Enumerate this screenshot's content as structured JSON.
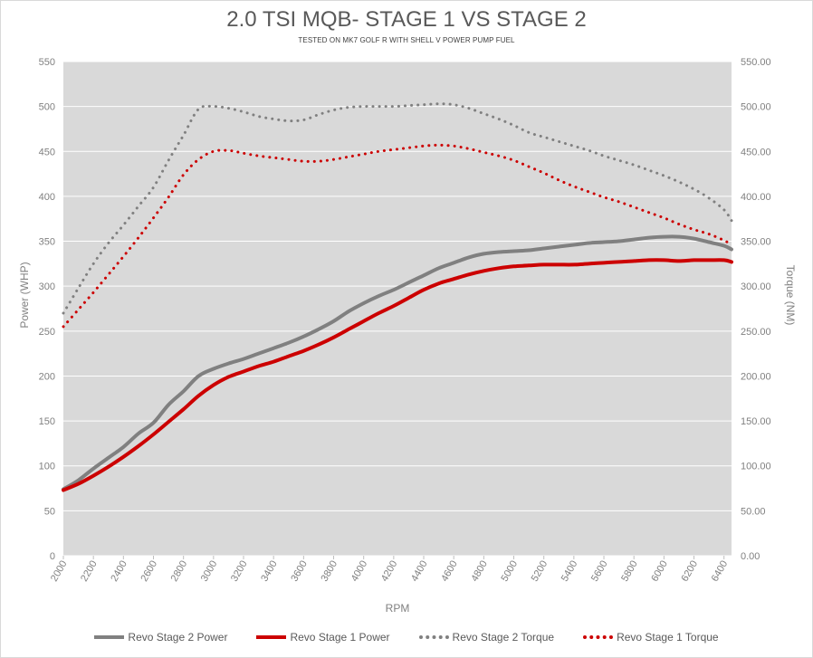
{
  "chart_data": {
    "type": "line",
    "title": "2.0 TSI MQB- STAGE 1 VS STAGE 2",
    "subtitle": "TESTED ON MK7 GOLF R WITH SHELL V POWER PUMP FUEL",
    "xlabel": "RPM",
    "ylabel": "Power (WHP)",
    "y2label": "Torque (NM)",
    "ylim": [
      0,
      550
    ],
    "y2lim": [
      0,
      550
    ],
    "xlim": [
      2000,
      6450
    ],
    "x_ticks": [
      2000,
      2200,
      2400,
      2600,
      2800,
      3000,
      3200,
      3400,
      3600,
      3800,
      4000,
      4200,
      4400,
      4600,
      4800,
      5000,
      5200,
      5400,
      5600,
      5800,
      6000,
      6200,
      6400
    ],
    "y_ticks": [
      "0",
      "50",
      "100",
      "150",
      "200",
      "250",
      "300",
      "350",
      "400",
      "450",
      "500",
      "550"
    ],
    "y2_ticks": [
      "0.00",
      "50.00",
      "100.00",
      "150.00",
      "200.00",
      "250.00",
      "300.00",
      "350.00",
      "400.00",
      "450.00",
      "500.00",
      "550.00"
    ],
    "grid": true,
    "legend_position": "bottom",
    "series": [
      {
        "name": "Revo Stage 2 Power",
        "axis": "left",
        "style": "solid",
        "color": "#808080",
        "points": [
          [
            2000,
            74
          ],
          [
            2100,
            84
          ],
          [
            2200,
            97
          ],
          [
            2300,
            109
          ],
          [
            2400,
            121
          ],
          [
            2500,
            136
          ],
          [
            2600,
            148
          ],
          [
            2700,
            168
          ],
          [
            2800,
            183
          ],
          [
            2900,
            200
          ],
          [
            3000,
            208
          ],
          [
            3100,
            214
          ],
          [
            3200,
            219
          ],
          [
            3300,
            225
          ],
          [
            3400,
            231
          ],
          [
            3500,
            237
          ],
          [
            3600,
            244
          ],
          [
            3700,
            252
          ],
          [
            3800,
            261
          ],
          [
            3900,
            272
          ],
          [
            4000,
            281
          ],
          [
            4100,
            289
          ],
          [
            4200,
            296
          ],
          [
            4300,
            304
          ],
          [
            4400,
            312
          ],
          [
            4500,
            320
          ],
          [
            4600,
            326
          ],
          [
            4700,
            332
          ],
          [
            4800,
            336
          ],
          [
            4900,
            338
          ],
          [
            5000,
            339
          ],
          [
            5100,
            340
          ],
          [
            5200,
            342
          ],
          [
            5300,
            344
          ],
          [
            5400,
            346
          ],
          [
            5500,
            348
          ],
          [
            5600,
            349
          ],
          [
            5700,
            350
          ],
          [
            5800,
            352
          ],
          [
            5900,
            354
          ],
          [
            6000,
            355
          ],
          [
            6100,
            355
          ],
          [
            6200,
            353
          ],
          [
            6300,
            349
          ],
          [
            6400,
            345
          ],
          [
            6450,
            341
          ]
        ]
      },
      {
        "name": "Revo Stage 1 Power",
        "axis": "left",
        "style": "solid",
        "color": "#cc0000",
        "points": [
          [
            2000,
            73
          ],
          [
            2100,
            80
          ],
          [
            2200,
            89
          ],
          [
            2300,
            99
          ],
          [
            2400,
            110
          ],
          [
            2500,
            122
          ],
          [
            2600,
            135
          ],
          [
            2700,
            149
          ],
          [
            2800,
            163
          ],
          [
            2900,
            178
          ],
          [
            3000,
            190
          ],
          [
            3100,
            199
          ],
          [
            3200,
            205
          ],
          [
            3300,
            211
          ],
          [
            3400,
            216
          ],
          [
            3500,
            222
          ],
          [
            3600,
            228
          ],
          [
            3700,
            235
          ],
          [
            3800,
            243
          ],
          [
            3900,
            252
          ],
          [
            4000,
            261
          ],
          [
            4100,
            270
          ],
          [
            4200,
            278
          ],
          [
            4300,
            287
          ],
          [
            4400,
            296
          ],
          [
            4500,
            303
          ],
          [
            4600,
            308
          ],
          [
            4700,
            313
          ],
          [
            4800,
            317
          ],
          [
            4900,
            320
          ],
          [
            5000,
            322
          ],
          [
            5100,
            323
          ],
          [
            5200,
            324
          ],
          [
            5300,
            324
          ],
          [
            5400,
            324
          ],
          [
            5500,
            325
          ],
          [
            5600,
            326
          ],
          [
            5700,
            327
          ],
          [
            5800,
            328
          ],
          [
            5900,
            329
          ],
          [
            6000,
            329
          ],
          [
            6100,
            328
          ],
          [
            6200,
            329
          ],
          [
            6300,
            329
          ],
          [
            6400,
            329
          ],
          [
            6450,
            327
          ]
        ]
      },
      {
        "name": "Revo Stage 2 Torque",
        "axis": "right",
        "style": "dotted",
        "color": "#808080",
        "points": [
          [
            2000,
            270
          ],
          [
            2100,
            298
          ],
          [
            2200,
            325
          ],
          [
            2300,
            348
          ],
          [
            2400,
            368
          ],
          [
            2500,
            389
          ],
          [
            2600,
            410
          ],
          [
            2700,
            440
          ],
          [
            2800,
            468
          ],
          [
            2900,
            497
          ],
          [
            3000,
            500
          ],
          [
            3100,
            498
          ],
          [
            3200,
            494
          ],
          [
            3300,
            489
          ],
          [
            3400,
            486
          ],
          [
            3500,
            484
          ],
          [
            3600,
            485
          ],
          [
            3700,
            491
          ],
          [
            3800,
            496
          ],
          [
            3900,
            499
          ],
          [
            4000,
            500
          ],
          [
            4100,
            500
          ],
          [
            4200,
            500
          ],
          [
            4300,
            501
          ],
          [
            4400,
            502
          ],
          [
            4500,
            503
          ],
          [
            4600,
            502
          ],
          [
            4700,
            498
          ],
          [
            4800,
            492
          ],
          [
            4900,
            486
          ],
          [
            5000,
            479
          ],
          [
            5100,
            471
          ],
          [
            5200,
            466
          ],
          [
            5300,
            461
          ],
          [
            5400,
            456
          ],
          [
            5500,
            451
          ],
          [
            5600,
            445
          ],
          [
            5700,
            440
          ],
          [
            5800,
            435
          ],
          [
            5900,
            429
          ],
          [
            6000,
            423
          ],
          [
            6100,
            416
          ],
          [
            6200,
            408
          ],
          [
            6300,
            398
          ],
          [
            6400,
            385
          ],
          [
            6450,
            373
          ]
        ]
      },
      {
        "name": "Revo Stage 1 Torque",
        "axis": "right",
        "style": "dotted",
        "color": "#cc0000",
        "points": [
          [
            2000,
            255
          ],
          [
            2100,
            274
          ],
          [
            2200,
            293
          ],
          [
            2300,
            313
          ],
          [
            2400,
            333
          ],
          [
            2500,
            354
          ],
          [
            2600,
            376
          ],
          [
            2700,
            399
          ],
          [
            2800,
            424
          ],
          [
            2900,
            441
          ],
          [
            3000,
            450
          ],
          [
            3100,
            451
          ],
          [
            3200,
            448
          ],
          [
            3300,
            445
          ],
          [
            3400,
            443
          ],
          [
            3500,
            441
          ],
          [
            3600,
            439
          ],
          [
            3700,
            439
          ],
          [
            3800,
            441
          ],
          [
            3900,
            444
          ],
          [
            4000,
            447
          ],
          [
            4100,
            450
          ],
          [
            4200,
            452
          ],
          [
            4300,
            454
          ],
          [
            4400,
            456
          ],
          [
            4500,
            457
          ],
          [
            4600,
            456
          ],
          [
            4700,
            453
          ],
          [
            4800,
            449
          ],
          [
            4900,
            445
          ],
          [
            5000,
            440
          ],
          [
            5100,
            433
          ],
          [
            5200,
            426
          ],
          [
            5300,
            418
          ],
          [
            5400,
            411
          ],
          [
            5500,
            405
          ],
          [
            5600,
            399
          ],
          [
            5700,
            394
          ],
          [
            5800,
            388
          ],
          [
            5900,
            382
          ],
          [
            6000,
            376
          ],
          [
            6100,
            369
          ],
          [
            6200,
            363
          ],
          [
            6300,
            358
          ],
          [
            6400,
            351
          ],
          [
            6450,
            346
          ]
        ]
      }
    ]
  }
}
